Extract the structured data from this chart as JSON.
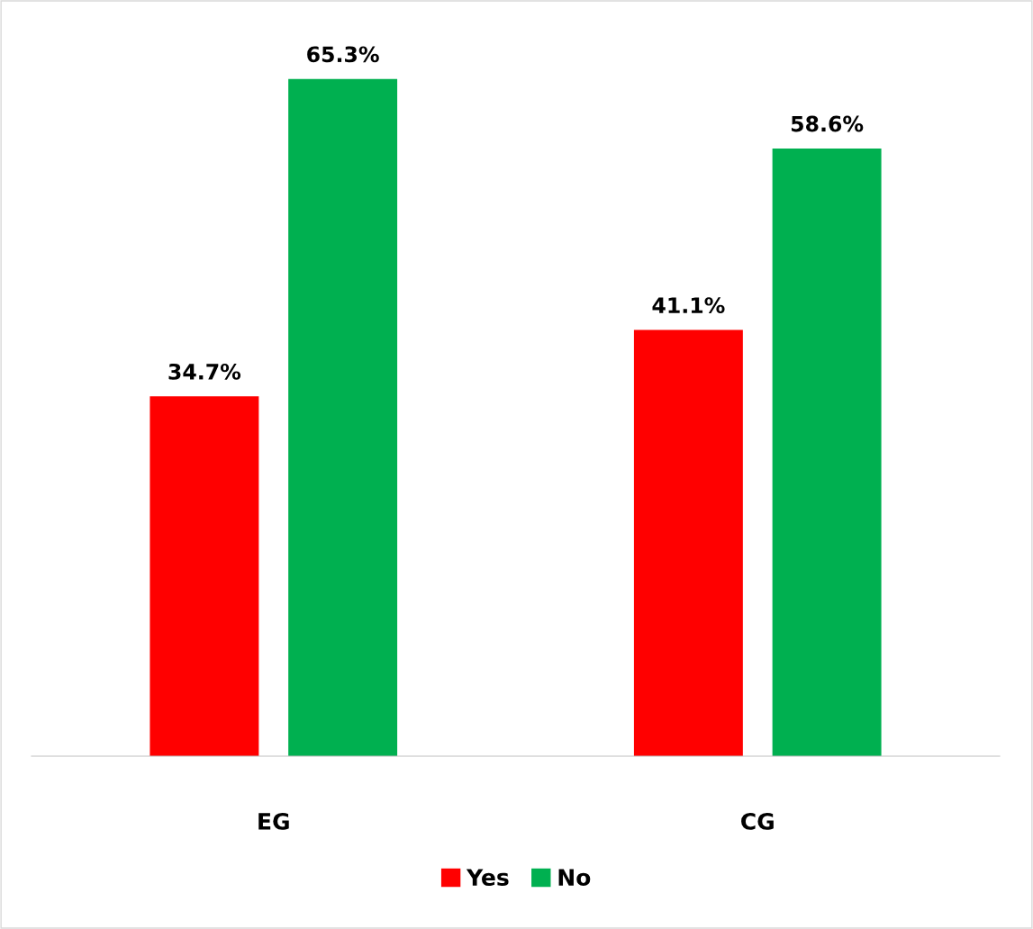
{
  "chart_data": {
    "type": "bar",
    "categories": [
      "EG",
      "CG"
    ],
    "series": [
      {
        "name": "Yes",
        "color": "#ff0000",
        "values": [
          34.7,
          41.1
        ],
        "value_labels": [
          "34.7%",
          "41.1%"
        ]
      },
      {
        "name": "No",
        "color": "#00b050",
        "values": [
          65.3,
          58.6
        ],
        "value_labels": [
          "65.3%",
          "58.6%"
        ]
      }
    ],
    "grid": false,
    "legend": "bottom"
  }
}
